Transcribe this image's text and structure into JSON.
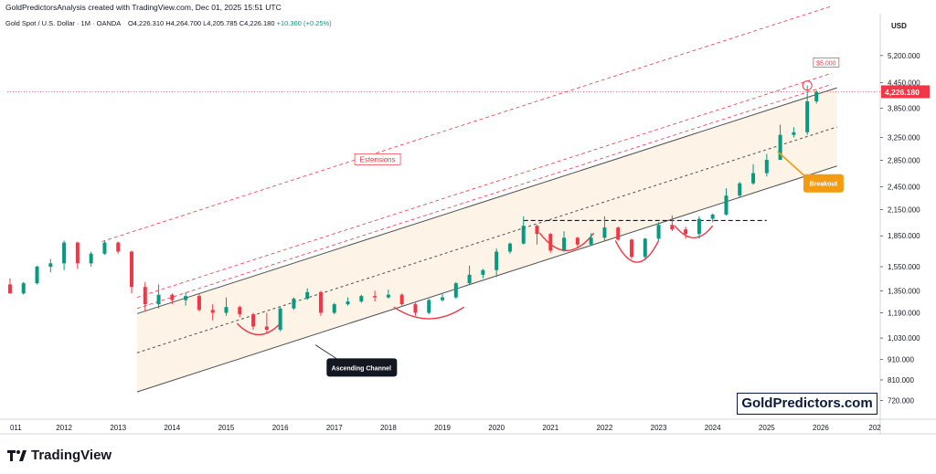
{
  "header": {
    "title": "GoldPredictorsAnalysis created with TradingView.com, Dec 01, 2025 15:51 UTC",
    "symbol": "Gold Spot / U.S. Dollar · 1M · OANDA",
    "ohlc": "O4,226.310 H4,264.700 L4,205.785 C4,226.180",
    "change": "+10.360 (+0.25%)"
  },
  "footer": {
    "logo_text": "TradingView"
  },
  "brand": "GoldPredictors.com",
  "colors": {
    "up": "#089981",
    "down": "#f23645",
    "price_tag": "#f23645",
    "channel_fill": "#fdf3e6",
    "breakout": "#f39c12"
  },
  "chart_data": {
    "type": "candlestick",
    "axis_currency": "USD",
    "y_scale": "log",
    "y_ticks": [
      "5,200.000",
      "4,450.000",
      "3,850.000",
      "3,250.000",
      "2,850.000",
      "2,450.000",
      "2,150.000",
      "1,850.000",
      "1,550.000",
      "1,350.000",
      "1,190.000",
      "1,030.000",
      "910.000",
      "810.000",
      "720.000"
    ],
    "x_ticks": [
      "011",
      "2012",
      "2013",
      "2014",
      "2015",
      "2016",
      "2017",
      "2018",
      "2019",
      "2020",
      "2021",
      "2022",
      "2023",
      "2024",
      "2025",
      "2026",
      "202"
    ],
    "last_price": "4,226.180",
    "ylim": [
      650,
      5800
    ],
    "x_range": [
      2010.95,
      2027.1
    ],
    "candles": [
      [
        2011.0,
        1400,
        1450,
        1330,
        1330
      ],
      [
        2011.25,
        1330,
        1420,
        1320,
        1410
      ],
      [
        2011.5,
        1410,
        1560,
        1400,
        1550
      ],
      [
        2011.75,
        1550,
        1620,
        1500,
        1580
      ],
      [
        2012.0,
        1580,
        1800,
        1520,
        1780
      ],
      [
        2012.25,
        1780,
        1790,
        1530,
        1580
      ],
      [
        2012.5,
        1580,
        1690,
        1550,
        1670
      ],
      [
        2012.75,
        1670,
        1800,
        1660,
        1780
      ],
      [
        2013.0,
        1780,
        1790,
        1670,
        1690
      ],
      [
        2013.25,
        1690,
        1700,
        1330,
        1380
      ],
      [
        2013.5,
        1380,
        1420,
        1200,
        1250
      ],
      [
        2013.75,
        1250,
        1400,
        1220,
        1320
      ],
      [
        2014.0,
        1320,
        1330,
        1250,
        1280
      ],
      [
        2014.25,
        1280,
        1340,
        1240,
        1310
      ],
      [
        2014.5,
        1310,
        1330,
        1200,
        1210
      ],
      [
        2014.75,
        1210,
        1250,
        1140,
        1190
      ],
      [
        2015.0,
        1190,
        1300,
        1170,
        1230
      ],
      [
        2015.25,
        1230,
        1240,
        1160,
        1180
      ],
      [
        2015.5,
        1180,
        1190,
        1080,
        1100
      ],
      [
        2015.75,
        1100,
        1190,
        1060,
        1080
      ],
      [
        2016.0,
        1080,
        1230,
        1070,
        1220
      ],
      [
        2016.25,
        1220,
        1300,
        1210,
        1290
      ],
      [
        2016.5,
        1290,
        1370,
        1280,
        1340
      ],
      [
        2016.75,
        1340,
        1350,
        1170,
        1190
      ],
      [
        2017.0,
        1190,
        1260,
        1180,
        1250
      ],
      [
        2017.25,
        1250,
        1300,
        1240,
        1270
      ],
      [
        2017.5,
        1270,
        1320,
        1260,
        1310
      ],
      [
        2017.75,
        1310,
        1350,
        1270,
        1300
      ],
      [
        2018.0,
        1300,
        1360,
        1290,
        1320
      ],
      [
        2018.25,
        1320,
        1330,
        1240,
        1250
      ],
      [
        2018.5,
        1250,
        1260,
        1170,
        1190
      ],
      [
        2018.75,
        1190,
        1290,
        1180,
        1280
      ],
      [
        2019.0,
        1280,
        1330,
        1270,
        1300
      ],
      [
        2019.25,
        1300,
        1420,
        1290,
        1410
      ],
      [
        2019.5,
        1410,
        1560,
        1400,
        1480
      ],
      [
        2019.75,
        1480,
        1530,
        1450,
        1520
      ],
      [
        2020.0,
        1520,
        1720,
        1460,
        1690
      ],
      [
        2020.25,
        1690,
        1780,
        1670,
        1770
      ],
      [
        2020.5,
        1770,
        2070,
        1760,
        1960
      ],
      [
        2020.75,
        1960,
        1970,
        1760,
        1870
      ],
      [
        2021.0,
        1870,
        1880,
        1680,
        1700
      ],
      [
        2021.25,
        1700,
        1900,
        1690,
        1830
      ],
      [
        2021.5,
        1830,
        1840,
        1730,
        1760
      ],
      [
        2021.75,
        1760,
        1880,
        1750,
        1830
      ],
      [
        2022.0,
        1830,
        2070,
        1790,
        1940
      ],
      [
        2022.25,
        1940,
        1950,
        1800,
        1810
      ],
      [
        2022.5,
        1810,
        1820,
        1620,
        1640
      ],
      [
        2022.75,
        1640,
        1830,
        1620,
        1820
      ],
      [
        2023.0,
        1820,
        2000,
        1800,
        1970
      ],
      [
        2023.25,
        1970,
        2080,
        1900,
        1920
      ],
      [
        2023.5,
        1920,
        1950,
        1820,
        1870
      ],
      [
        2023.75,
        1870,
        2070,
        1820,
        2040
      ],
      [
        2024.0,
        2040,
        2100,
        2000,
        2090
      ],
      [
        2024.25,
        2090,
        2430,
        2080,
        2330
      ],
      [
        2024.5,
        2330,
        2520,
        2300,
        2500
      ],
      [
        2024.75,
        2500,
        2790,
        2480,
        2650
      ],
      [
        2025.0,
        2650,
        2960,
        2600,
        2860
      ],
      [
        2025.25,
        2860,
        3500,
        2860,
        3300
      ],
      [
        2025.5,
        3300,
        3450,
        3250,
        3350
      ],
      [
        2025.75,
        3350,
        4380,
        3300,
        4000
      ],
      [
        2025.92,
        4000,
        4265,
        3950,
        4226
      ]
    ],
    "annotations": {
      "target": "$5,000",
      "extensions": "Estensions",
      "channel": "Ascending Channel",
      "breakout": "Breakout"
    },
    "grid": false
  }
}
